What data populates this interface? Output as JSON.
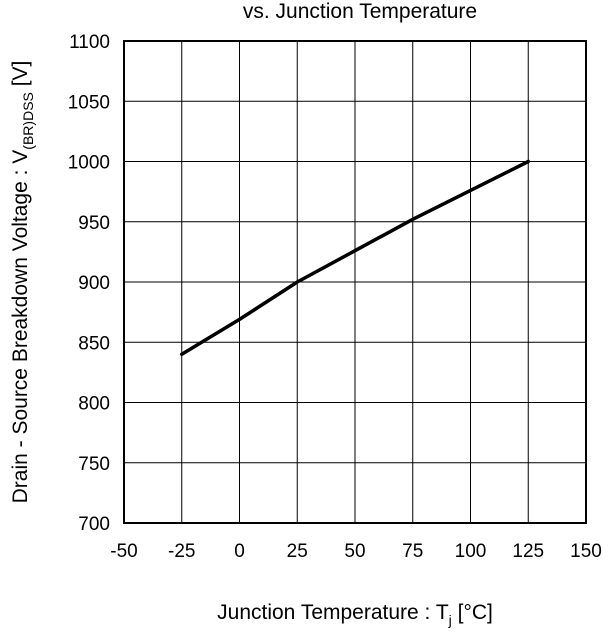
{
  "chart_data": {
    "type": "line",
    "title": "vs. Junction Temperature",
    "xlabel": {
      "text": "Junction Temperature : T",
      "sub": "j",
      "unit": " [°C]"
    },
    "ylabel": {
      "text": "Drain - Source Breakdown Voltage : V",
      "sub": "(BR)DSS",
      "unit": " [V]"
    },
    "xlim": [
      -50,
      150
    ],
    "ylim": [
      700,
      1100
    ],
    "xticks": [
      -50,
      -25,
      0,
      25,
      50,
      75,
      100,
      125,
      150
    ],
    "yticks": [
      700,
      750,
      800,
      850,
      900,
      950,
      1000,
      1050,
      1100
    ],
    "xtick_labels": [
      "-50",
      "-25",
      "0",
      "25",
      "50",
      "75",
      "100",
      "125",
      "150"
    ],
    "ytick_labels": [
      "700",
      "750",
      "800",
      "850",
      "900",
      "950",
      "1000",
      "1050",
      "1100"
    ],
    "grid": true,
    "series": [
      {
        "x": [
          -25,
          0,
          25,
          50,
          75,
          100,
          125
        ],
        "y": [
          840,
          869,
          900,
          926,
          952,
          976,
          1000
        ]
      }
    ]
  }
}
